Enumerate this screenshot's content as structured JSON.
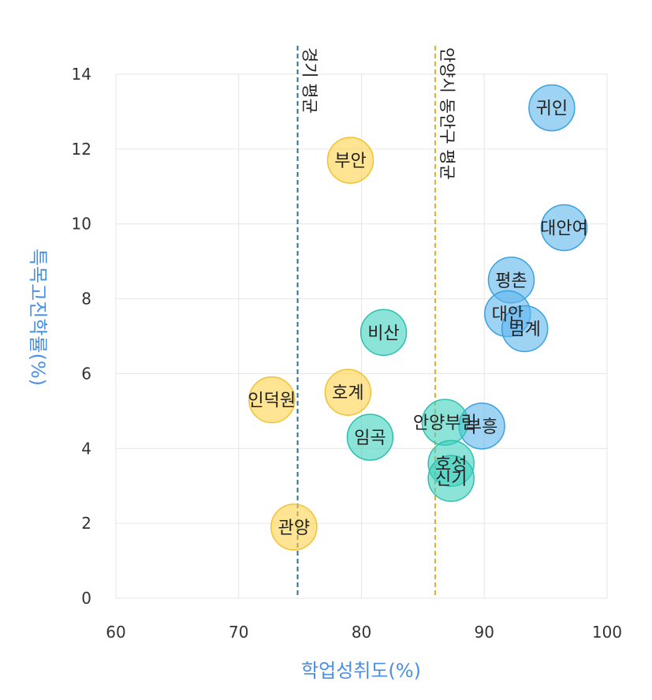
{
  "chart_data": {
    "type": "scatter",
    "title": "",
    "xlabel": "학업성취도(%)",
    "ylabel": "특목고진학률(%)",
    "xlim": [
      60,
      100
    ],
    "ylim": [
      0,
      14
    ],
    "x_ticks": [
      60,
      70,
      80,
      90,
      100
    ],
    "y_ticks": [
      0,
      2,
      4,
      6,
      8,
      10,
      12,
      14
    ],
    "grid": true,
    "colors": {
      "yellow": "#ffd24d",
      "teal": "#40d0be",
      "blue": "#5fb6ec",
      "axis_title": "#4a90e2"
    },
    "reference_lines": [
      {
        "label": "경기 평균",
        "x": 74.8,
        "color": "#2f6f8f"
      },
      {
        "label": "안양시 동안구 평균",
        "x": 86.0,
        "color": "#f5a623"
      }
    ],
    "points": [
      {
        "label": "귀인",
        "x": 95.5,
        "y": 13.1,
        "group": "blue"
      },
      {
        "label": "대안여",
        "x": 96.5,
        "y": 9.9,
        "group": "blue"
      },
      {
        "label": "평촌",
        "x": 92.2,
        "y": 8.5,
        "group": "blue"
      },
      {
        "label": "대안",
        "x": 91.9,
        "y": 7.6,
        "group": "blue"
      },
      {
        "label": "범계",
        "x": 93.3,
        "y": 7.2,
        "group": "blue"
      },
      {
        "label": "부흥",
        "x": 89.8,
        "y": 4.6,
        "group": "blue"
      },
      {
        "label": "부안",
        "x": 79.1,
        "y": 11.7,
        "group": "yellow"
      },
      {
        "label": "호계",
        "x": 78.9,
        "y": 5.5,
        "group": "yellow"
      },
      {
        "label": "인덕원",
        "x": 72.7,
        "y": 5.3,
        "group": "yellow"
      },
      {
        "label": "관양",
        "x": 74.5,
        "y": 1.9,
        "group": "yellow"
      },
      {
        "label": "비산",
        "x": 81.8,
        "y": 7.1,
        "group": "teal"
      },
      {
        "label": "임곡",
        "x": 80.7,
        "y": 4.3,
        "group": "teal"
      },
      {
        "label": "안양부림",
        "x": 86.8,
        "y": 4.7,
        "group": "teal"
      },
      {
        "label": "호성",
        "x": 87.3,
        "y": 3.6,
        "group": "teal"
      },
      {
        "label": "신기",
        "x": 87.3,
        "y": 3.2,
        "group": "teal"
      }
    ]
  }
}
